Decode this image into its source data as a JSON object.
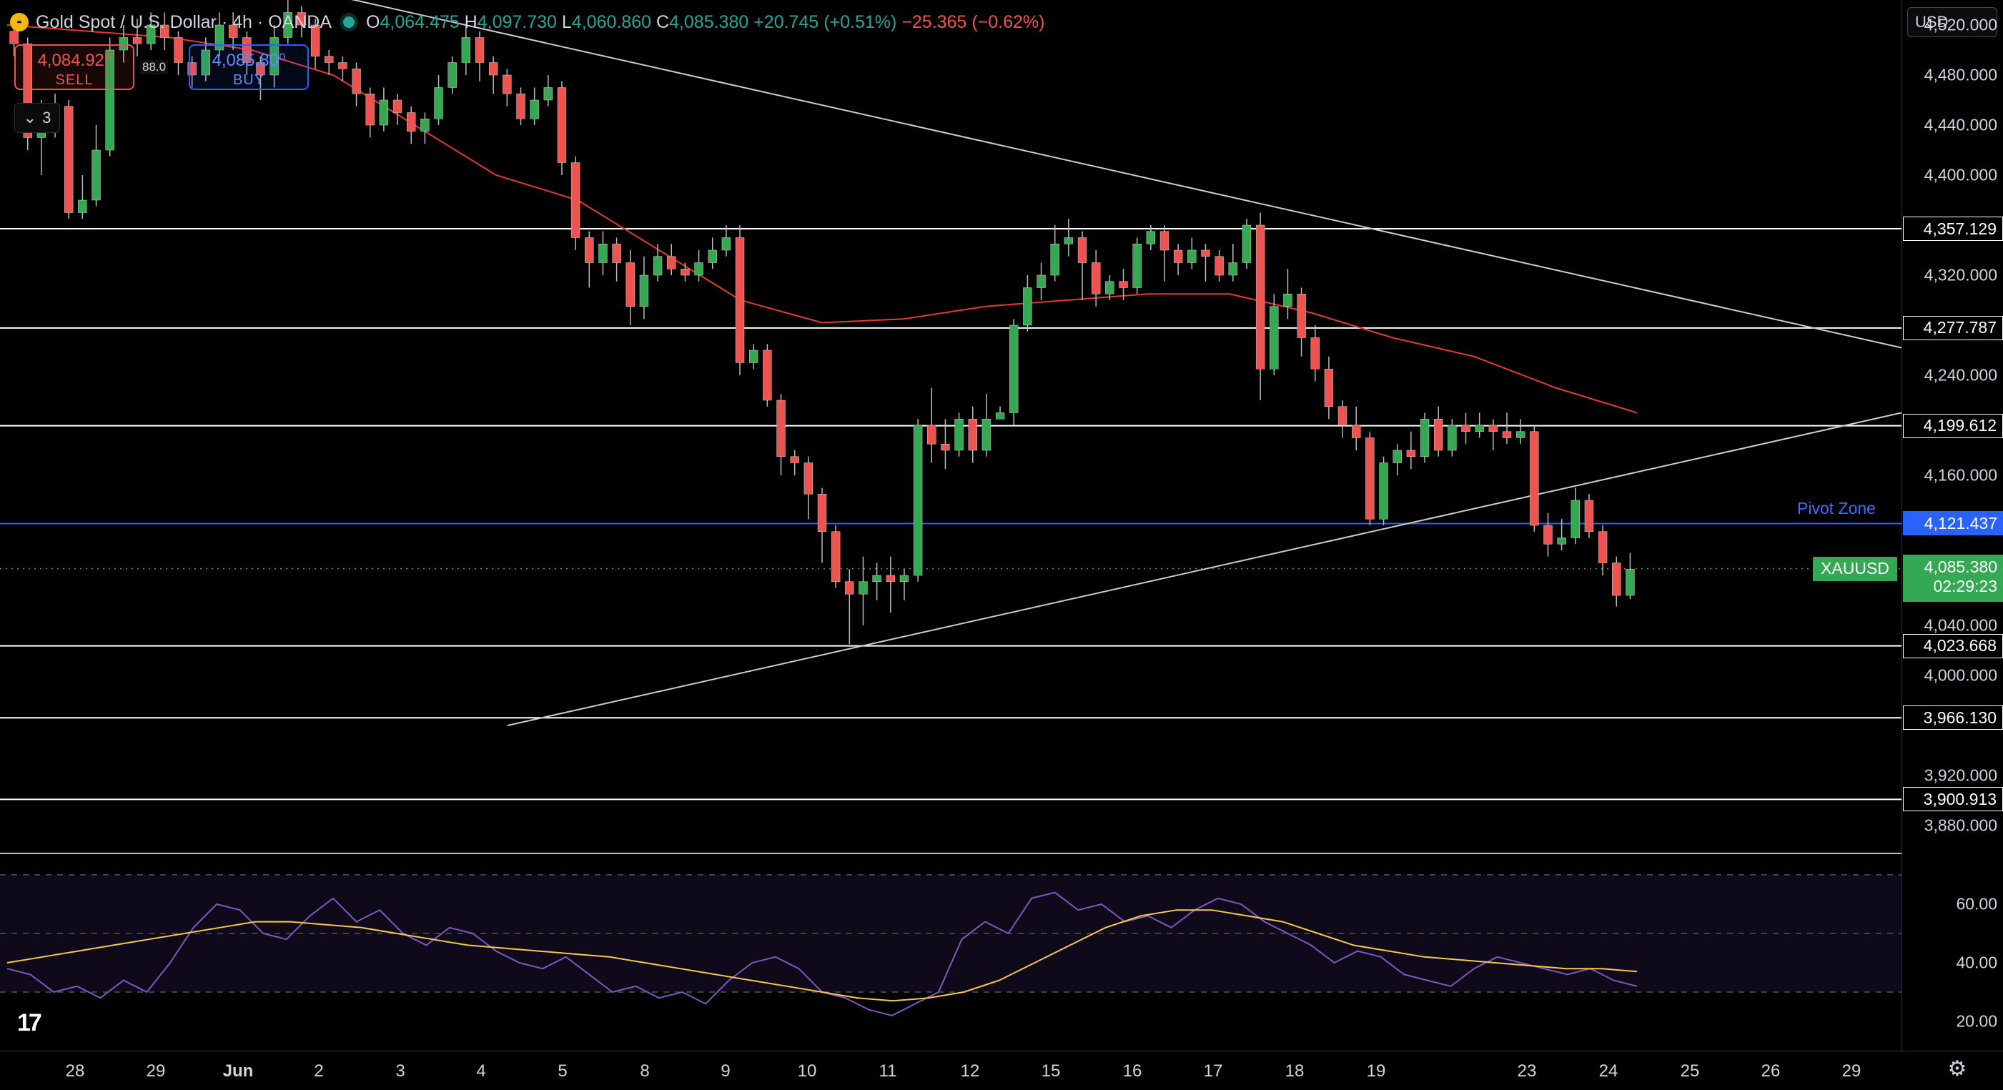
{
  "legend": {
    "symbol_title": "Gold Spot / U.S. Dollar · 4h · OANDA",
    "o_label": "O",
    "o": "4,064.475",
    "h_label": "H",
    "h": "4,097.730",
    "l_label": "L",
    "l": "4,060.860",
    "c_label": "C",
    "c": "4,085.380",
    "change": "+20.745 (+0.51%)",
    "change2": "−25.365 (−0.62%)"
  },
  "trade": {
    "sell_price": "4,084.92⁰",
    "sell_label": "SELL",
    "buy_price": "4,085.80⁰",
    "buy_label": "BUY",
    "spread": "88.0"
  },
  "collapse_count": "3",
  "currency": "USD",
  "price_axis": [
    "4,520.000",
    "4,480.000",
    "4,440.000",
    "4,400.000",
    "4,320.000",
    "4,240.000",
    "4,160.000",
    "4,040.000",
    "4,000.000",
    "3,920.000",
    "3,880.000"
  ],
  "price_values": [
    4520,
    4480,
    4440,
    4400,
    4320,
    4240,
    4160,
    4040,
    4000,
    3920,
    3880
  ],
  "levels": [
    {
      "label": "4,357.129",
      "value": 4357.129
    },
    {
      "label": "4,277.787",
      "value": 4277.787
    },
    {
      "label": "4,199.612",
      "value": 4199.612
    },
    {
      "label": "4,023.668",
      "value": 4023.668
    },
    {
      "label": "3,966.130",
      "value": 3966.13
    },
    {
      "label": "3,900.913",
      "value": 3900.913
    }
  ],
  "pivot": {
    "label": "4,121.437",
    "value": 4121.437,
    "text": "Pivot Zone"
  },
  "current": {
    "symbol": "XAUUSD",
    "price": "4,085.380",
    "countdown": "02:29:23",
    "value": 4085.38
  },
  "rsi_axis": [
    "60.00",
    "40.00",
    "20.00"
  ],
  "rsi_values": [
    60,
    40,
    20
  ],
  "time_axis": [
    {
      "label": "28",
      "bold": false
    },
    {
      "label": "29",
      "bold": false
    },
    {
      "label": "Jun",
      "bold": true
    },
    {
      "label": "2",
      "bold": false
    },
    {
      "label": "3",
      "bold": false
    },
    {
      "label": "4",
      "bold": false
    },
    {
      "label": "5",
      "bold": false
    },
    {
      "label": "8",
      "bold": false
    },
    {
      "label": "9",
      "bold": false
    },
    {
      "label": "10",
      "bold": false
    },
    {
      "label": "11",
      "bold": false
    },
    {
      "label": "12",
      "bold": false
    },
    {
      "label": "15",
      "bold": false
    },
    {
      "label": "16",
      "bold": false
    },
    {
      "label": "17",
      "bold": false
    },
    {
      "label": "18",
      "bold": false
    },
    {
      "label": "19",
      "bold": false
    },
    {
      "label": "23",
      "bold": false
    },
    {
      "label": "24",
      "bold": false
    },
    {
      "label": "25",
      "bold": false
    },
    {
      "label": "26",
      "bold": false
    },
    {
      "label": "29",
      "bold": false
    }
  ],
  "icons": {
    "logo": "tradingview-logo-icon",
    "gear": "gear-icon",
    "status": "market-open-dot-icon",
    "collapse": "chevron-down-icon",
    "symbol": "gold-symbol-icon"
  },
  "colors": {
    "up": "#34a853",
    "down": "#ef5350",
    "ma": "#e53935",
    "rsi": "#7e57c2",
    "rsi_ma": "#f9c74f",
    "pivot": "#2962ff"
  },
  "chart_data": {
    "type": "candlestick",
    "title": "Gold Spot / U.S. Dollar · 4h · OANDA",
    "ylim": [
      3860,
      4540
    ],
    "candles": [
      [
        4515,
        4505,
        4520,
        4495
      ],
      [
        4505,
        4430,
        4510,
        4420
      ],
      [
        4430,
        4440,
        4460,
        4400
      ],
      [
        4440,
        4455,
        4465,
        4430
      ],
      [
        4455,
        4370,
        4460,
        4365
      ],
      [
        4370,
        4380,
        4400,
        4365
      ],
      [
        4380,
        4420,
        4440,
        4375
      ],
      [
        4420,
        4500,
        4510,
        4415
      ],
      [
        4500,
        4510,
        4520,
        4490
      ],
      [
        4510,
        4505,
        4525,
        4495
      ],
      [
        4505,
        4520,
        4530,
        4500
      ],
      [
        4520,
        4510,
        4530,
        4500
      ],
      [
        4510,
        4490,
        4515,
        4480
      ],
      [
        4490,
        4480,
        4495,
        4470
      ],
      [
        4480,
        4500,
        4510,
        4475
      ],
      [
        4500,
        4520,
        4530,
        4495
      ],
      [
        4520,
        4510,
        4530,
        4500
      ],
      [
        4510,
        4490,
        4515,
        4480
      ],
      [
        4490,
        4480,
        4495,
        4460
      ],
      [
        4480,
        4510,
        4520,
        4470
      ],
      [
        4510,
        4530,
        4540,
        4505
      ],
      [
        4530,
        4520,
        4535,
        4510
      ],
      [
        4520,
        4495,
        4525,
        4485
      ],
      [
        4495,
        4490,
        4500,
        4480
      ],
      [
        4490,
        4485,
        4495,
        4475
      ],
      [
        4485,
        4465,
        4490,
        4455
      ],
      [
        4465,
        4440,
        4470,
        4430
      ],
      [
        4440,
        4460,
        4470,
        4435
      ],
      [
        4460,
        4450,
        4465,
        4440
      ],
      [
        4450,
        4435,
        4455,
        4425
      ],
      [
        4435,
        4445,
        4450,
        4425
      ],
      [
        4445,
        4470,
        4480,
        4440
      ],
      [
        4470,
        4490,
        4495,
        4465
      ],
      [
        4490,
        4510,
        4520,
        4480
      ],
      [
        4510,
        4490,
        4515,
        4475
      ],
      [
        4490,
        4480,
        4495,
        4465
      ],
      [
        4480,
        4465,
        4485,
        4455
      ],
      [
        4465,
        4445,
        4470,
        4440
      ],
      [
        4445,
        4460,
        4470,
        4440
      ],
      [
        4460,
        4470,
        4480,
        4455
      ],
      [
        4470,
        4410,
        4475,
        4400
      ],
      [
        4410,
        4350,
        4415,
        4340
      ],
      [
        4350,
        4330,
        4355,
        4310
      ],
      [
        4330,
        4345,
        4355,
        4320
      ],
      [
        4345,
        4330,
        4350,
        4315
      ],
      [
        4330,
        4295,
        4340,
        4280
      ],
      [
        4295,
        4320,
        4335,
        4285
      ],
      [
        4320,
        4335,
        4345,
        4315
      ],
      [
        4335,
        4325,
        4345,
        4320
      ],
      [
        4325,
        4320,
        4330,
        4315
      ],
      [
        4320,
        4330,
        4340,
        4315
      ],
      [
        4330,
        4340,
        4350,
        4325
      ],
      [
        4340,
        4350,
        4360,
        4335
      ],
      [
        4350,
        4250,
        4360,
        4240
      ],
      [
        4250,
        4260,
        4265,
        4245
      ],
      [
        4260,
        4220,
        4265,
        4215
      ],
      [
        4220,
        4175,
        4225,
        4160
      ],
      [
        4175,
        4170,
        4180,
        4160
      ],
      [
        4170,
        4145,
        4175,
        4125
      ],
      [
        4145,
        4115,
        4150,
        4090
      ],
      [
        4115,
        4075,
        4120,
        4070
      ],
      [
        4075,
        4065,
        4085,
        4025
      ],
      [
        4065,
        4075,
        4095,
        4040
      ],
      [
        4075,
        4080,
        4090,
        4060
      ],
      [
        4080,
        4075,
        4095,
        4050
      ],
      [
        4075,
        4080,
        4085,
        4060
      ],
      [
        4080,
        4200,
        4205,
        4075
      ],
      [
        4200,
        4185,
        4230,
        4170
      ],
      [
        4185,
        4180,
        4205,
        4165
      ],
      [
        4180,
        4205,
        4210,
        4175
      ],
      [
        4205,
        4180,
        4215,
        4170
      ],
      [
        4180,
        4205,
        4225,
        4175
      ],
      [
        4205,
        4210,
        4215,
        4205
      ],
      [
        4210,
        4280,
        4285,
        4200
      ],
      [
        4280,
        4310,
        4320,
        4275
      ],
      [
        4310,
        4320,
        4330,
        4300
      ],
      [
        4320,
        4345,
        4360,
        4315
      ],
      [
        4345,
        4350,
        4365,
        4335
      ],
      [
        4350,
        4330,
        4355,
        4300
      ],
      [
        4330,
        4305,
        4340,
        4295
      ],
      [
        4305,
        4315,
        4320,
        4300
      ],
      [
        4315,
        4310,
        4325,
        4300
      ],
      [
        4310,
        4345,
        4350,
        4305
      ],
      [
        4345,
        4355,
        4360,
        4340
      ],
      [
        4355,
        4340,
        4360,
        4315
      ],
      [
        4340,
        4330,
        4345,
        4320
      ],
      [
        4330,
        4340,
        4350,
        4325
      ],
      [
        4340,
        4335,
        4345,
        4315
      ],
      [
        4335,
        4320,
        4340,
        4315
      ],
      [
        4320,
        4330,
        4345,
        4315
      ],
      [
        4330,
        4360,
        4365,
        4325
      ],
      [
        4360,
        4245,
        4370,
        4220
      ],
      [
        4245,
        4295,
        4305,
        4240
      ],
      [
        4295,
        4305,
        4325,
        4285
      ],
      [
        4305,
        4270,
        4310,
        4255
      ],
      [
        4270,
        4245,
        4280,
        4235
      ],
      [
        4245,
        4215,
        4255,
        4205
      ],
      [
        4215,
        4200,
        4220,
        4190
      ],
      [
        4200,
        4190,
        4215,
        4180
      ],
      [
        4190,
        4125,
        4195,
        4120
      ],
      [
        4125,
        4170,
        4175,
        4120
      ],
      [
        4170,
        4180,
        4185,
        4160
      ],
      [
        4180,
        4175,
        4195,
        4165
      ],
      [
        4175,
        4205,
        4210,
        4170
      ],
      [
        4205,
        4180,
        4215,
        4175
      ],
      [
        4180,
        4200,
        4205,
        4175
      ],
      [
        4200,
        4195,
        4210,
        4185
      ],
      [
        4195,
        4200,
        4210,
        4190
      ],
      [
        4200,
        4195,
        4205,
        4180
      ],
      [
        4195,
        4190,
        4210,
        4185
      ],
      [
        4190,
        4195,
        4205,
        4185
      ],
      [
        4195,
        4120,
        4200,
        4115
      ],
      [
        4120,
        4105,
        4130,
        4095
      ],
      [
        4105,
        4110,
        4125,
        4100
      ],
      [
        4110,
        4140,
        4150,
        4105
      ],
      [
        4140,
        4115,
        4145,
        4110
      ],
      [
        4115,
        4090,
        4120,
        4080
      ],
      [
        4090,
        4064,
        4095,
        4055
      ],
      [
        4064,
        4085,
        4098,
        4061
      ]
    ],
    "ma_line": [
      4520,
      4515,
      4510,
      4500,
      4480,
      4440,
      4400,
      4380,
      4340,
      4300,
      4282,
      4285,
      4295,
      4300,
      4305,
      4305,
      4290,
      4270,
      4255,
      4230,
      4210
    ],
    "support_line": {
      "from": [
        0.0,
        3960
      ],
      "to": [
        1.0,
        4210
      ]
    },
    "resistance_line": {
      "from": [
        0.0,
        4560
      ],
      "to": [
        1.0,
        4262
      ]
    },
    "rsi": [
      38,
      36,
      30,
      32,
      28,
      34,
      30,
      40,
      52,
      60,
      58,
      50,
      48,
      56,
      62,
      54,
      58,
      50,
      46,
      52,
      50,
      44,
      40,
      38,
      42,
      36,
      30,
      32,
      28,
      30,
      26,
      34,
      40,
      42,
      38,
      30,
      28,
      24,
      22,
      26,
      30,
      48,
      54,
      50,
      62,
      64,
      58,
      60,
      54,
      56,
      52,
      58,
      62,
      60,
      54,
      50,
      46,
      40,
      44,
      42,
      36,
      34,
      32,
      38,
      42,
      40,
      38,
      36,
      38,
      34,
      32
    ],
    "rsi_ma": [
      40,
      42,
      44,
      46,
      48,
      50,
      52,
      54,
      54,
      53,
      52,
      50,
      48,
      46,
      45,
      44,
      43,
      42,
      40,
      38,
      36,
      34,
      32,
      30,
      28,
      27,
      28,
      30,
      34,
      40,
      46,
      52,
      56,
      58,
      58,
      56,
      54,
      50,
      46,
      44,
      42,
      41,
      40,
      39,
      38,
      38,
      37
    ]
  }
}
